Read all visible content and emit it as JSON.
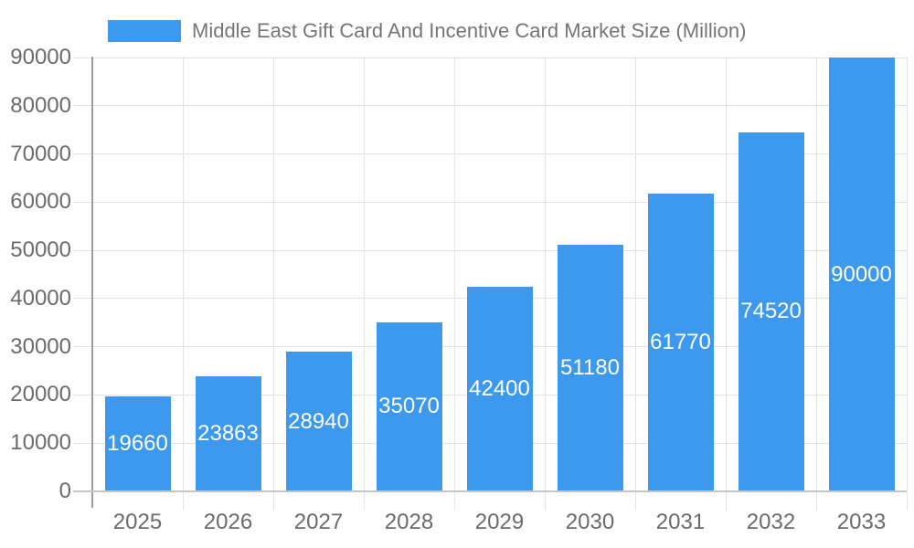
{
  "legend": {
    "items": [
      {
        "label": "Middle East Gift Card And Incentive Card Market Size (Million)",
        "color": "#3d99ed"
      }
    ]
  },
  "chart_data": {
    "type": "bar",
    "title": "Middle East Gift Card And Incentive Card Market Size (Million)",
    "categories": [
      "2025",
      "2026",
      "2027",
      "2028",
      "2029",
      "2030",
      "2031",
      "2032",
      "2033"
    ],
    "series": [
      {
        "name": "Middle East Gift Card And Incentive Card Market Size (Million)",
        "values": [
          19660,
          23863,
          28940,
          35070,
          42400,
          51180,
          61770,
          74520,
          90000
        ],
        "color": "#3d99ed"
      }
    ],
    "value_labels": [
      "19660",
      "23863",
      "28940",
      "35070",
      "42400",
      "51180",
      "61770",
      "74520",
      "90000"
    ],
    "xlabel": "",
    "ylabel": "",
    "ylim": [
      0,
      90000
    ],
    "ytick_step": 10000,
    "ytick_labels": [
      "0",
      "10000",
      "20000",
      "30000",
      "40000",
      "50000",
      "60000",
      "70000",
      "80000",
      "90000"
    ],
    "grid": true,
    "legend_position": "top",
    "colors": {
      "bar": "#3d99ed",
      "grid": "#e3e3e3",
      "x_axis_line": "#c6c6c6",
      "y_axis_line": "#9c9c9c",
      "axis_label": "#6b6b6b",
      "title_text": "#757575",
      "value_label": "#ffffff",
      "background": "#ffffff"
    }
  }
}
